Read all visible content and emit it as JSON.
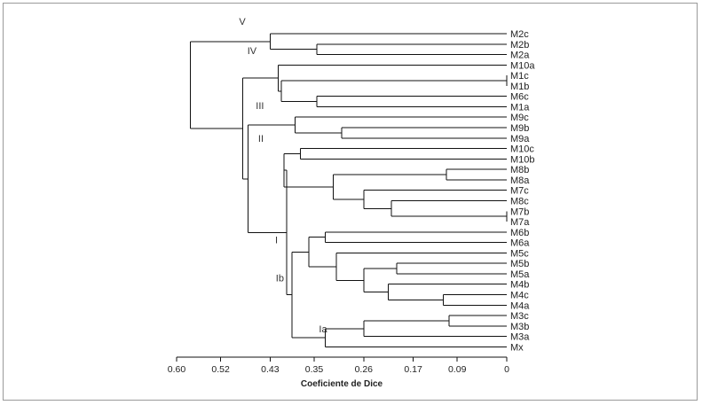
{
  "axis": {
    "title": "Coeficiente de Dice",
    "ticks": [
      {
        "label": "0.60",
        "value": 0.6
      },
      {
        "label": "0.52",
        "value": 0.52
      },
      {
        "label": "0.43",
        "value": 0.43
      },
      {
        "label": "0.35",
        "value": 0.35
      },
      {
        "label": "0.26",
        "value": 0.26
      },
      {
        "label": "0.17",
        "value": 0.17
      },
      {
        "label": "0.09",
        "value": 0.09
      },
      {
        "label": "0",
        "value": 0
      }
    ]
  },
  "leaves": [
    "M2c",
    "M2b",
    "M2a",
    "M10a",
    "M1c",
    "M1b",
    "M6c",
    "M1a",
    "M9c",
    "M9b",
    "M9a",
    "M10c",
    "M10b",
    "M8b",
    "M8a",
    "M7c",
    "M8c",
    "M7b",
    "M7a",
    "M6b",
    "M6a",
    "M5c",
    "M5b",
    "M5a",
    "M4b",
    "M4c",
    "M4a",
    "M3c",
    "M3b",
    "M3a",
    "Mx"
  ],
  "group_labels": [
    {
      "text": "V",
      "node": "V"
    },
    {
      "text": "IV",
      "node": "IV"
    },
    {
      "text": "III",
      "node": "III"
    },
    {
      "text": "II",
      "node": "II"
    },
    {
      "text": "Ib",
      "node": "Ib"
    },
    {
      "text": "I",
      "node": "I"
    },
    {
      "text": "Ia",
      "node": "Ia"
    }
  ],
  "tree": {
    "name": "root",
    "h": 0.575,
    "children": [
      {
        "name": "V",
        "h": 0.43,
        "children": [
          {
            "leaf": "M2c"
          },
          {
            "h": 0.345,
            "children": [
              {
                "leaf": "M2b"
              },
              {
                "leaf": "M2a"
              }
            ]
          }
        ]
      },
      {
        "h": 0.48,
        "children": [
          {
            "name": "IV",
            "h": 0.415,
            "children": [
              {
                "leaf": "M10a"
              },
              {
                "h": 0.41,
                "children": [
                  {
                    "h": 0,
                    "children": [
                      {
                        "leaf": "M1c"
                      },
                      {
                        "leaf": "M1b"
                      }
                    ]
                  },
                  {
                    "h": 0.345,
                    "children": [
                      {
                        "leaf": "M6c"
                      },
                      {
                        "leaf": "M1a"
                      }
                    ]
                  }
                ]
              }
            ]
          },
          {
            "h": 0.47,
            "children": [
              {
                "name": "III",
                "h": 0.385,
                "children": [
                  {
                    "leaf": "M9c"
                  },
                  {
                    "h": 0.3,
                    "children": [
                      {
                        "leaf": "M9b"
                      },
                      {
                        "leaf": "M9a"
                      }
                    ]
                  }
                ]
              },
              {
                "name": "I",
                "h": 0.4,
                "children": [
                  {
                    "name": "II",
                    "h": 0.405,
                    "children": [
                      {
                        "h": 0.375,
                        "children": [
                          {
                            "leaf": "M10c"
                          },
                          {
                            "leaf": "M10b"
                          }
                        ]
                      },
                      {
                        "h": 0.315,
                        "children": [
                          {
                            "h": 0.11,
                            "children": [
                              {
                                "leaf": "M8b"
                              },
                              {
                                "leaf": "M8a"
                              }
                            ]
                          },
                          {
                            "h": 0.26,
                            "children": [
                              {
                                "leaf": "M7c"
                              },
                              {
                                "h": 0.21,
                                "children": [
                                  {
                                    "leaf": "M8c"
                                  },
                                  {
                                    "h": 0,
                                    "children": [
                                      {
                                        "leaf": "M7b"
                                      },
                                      {
                                        "leaf": "M7a"
                                      }
                                    ]
                                  }
                                ]
                              }
                            ]
                          }
                        ]
                      }
                    ]
                  },
                  {
                    "h": 0.39,
                    "children": [
                      {
                        "name": "Ib",
                        "h": 0.36,
                        "children": [
                          {
                            "h": 0.33,
                            "children": [
                              {
                                "leaf": "M6b"
                              },
                              {
                                "leaf": "M6a"
                              }
                            ]
                          },
                          {
                            "h": 0.31,
                            "children": [
                              {
                                "leaf": "M5c"
                              },
                              {
                                "h": 0.26,
                                "children": [
                                  {
                                    "h": 0.2,
                                    "children": [
                                      {
                                        "leaf": "M5b"
                                      },
                                      {
                                        "leaf": "M5a"
                                      }
                                    ]
                                  },
                                  {
                                    "h": 0.215,
                                    "children": [
                                      {
                                        "leaf": "M4b"
                                      },
                                      {
                                        "h": 0.115,
                                        "children": [
                                          {
                                            "leaf": "M4c"
                                          },
                                          {
                                            "leaf": "M4a"
                                          }
                                        ]
                                      }
                                    ]
                                  }
                                ]
                              }
                            ]
                          }
                        ]
                      },
                      {
                        "name": "Ia",
                        "h": 0.33,
                        "children": [
                          {
                            "h": 0.26,
                            "children": [
                              {
                                "h": 0.105,
                                "children": [
                                  {
                                    "leaf": "M3c"
                                  },
                                  {
                                    "leaf": "M3b"
                                  }
                                ]
                              },
                              {
                                "leaf": "M3a"
                              }
                            ]
                          },
                          {
                            "leaf": "Mx"
                          }
                        ]
                      }
                    ]
                  }
                ]
              }
            ]
          }
        ]
      }
    ]
  }
}
